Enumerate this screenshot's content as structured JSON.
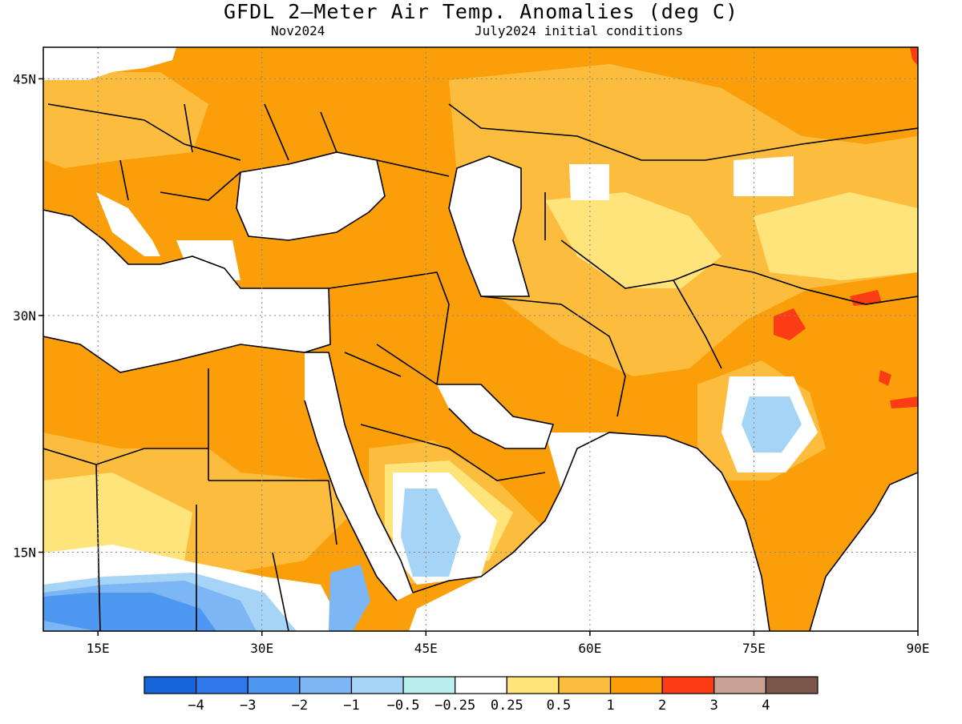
{
  "title": "GFDL 2—Meter Air Temp. Anomalies (deg C)",
  "subtitle_left": "Nov2024",
  "subtitle_right": "July2024 initial conditions",
  "map": {
    "projection": "equirectangular",
    "lon_range": [
      10,
      90
    ],
    "lat_range": [
      10,
      47
    ],
    "x_ticks": [
      {
        "lon": 15,
        "label": "15E"
      },
      {
        "lon": 30,
        "label": "30E"
      },
      {
        "lon": 45,
        "label": "45E"
      },
      {
        "lon": 60,
        "label": "60E"
      },
      {
        "lon": 75,
        "label": "75E"
      },
      {
        "lon": 90,
        "label": "90E"
      }
    ],
    "y_ticks": [
      {
        "lat": 45,
        "label": "45N"
      },
      {
        "lat": 30,
        "label": "30N"
      },
      {
        "lat": 15,
        "label": "15N"
      }
    ],
    "grid": true,
    "grid_style": "dotted"
  },
  "colorbar": {
    "bins": [
      {
        "range": "< -4",
        "color": "#1565d8"
      },
      {
        "range": "-4 to -3",
        "color": "#2e78ec"
      },
      {
        "range": "-3 to -2",
        "color": "#4f98f2"
      },
      {
        "range": "-2 to -1",
        "color": "#7db6f4"
      },
      {
        "range": "-1 to -0.5",
        "color": "#a6d4f6"
      },
      {
        "range": "-0.5 to -0.25",
        "color": "#b9efef"
      },
      {
        "range": "-0.25 to 0.25",
        "color": "#ffffff"
      },
      {
        "range": "0.25 to 0.5",
        "color": "#ffe47c"
      },
      {
        "range": "0.5 to 1",
        "color": "#fcbd3f"
      },
      {
        "range": "1 to 2",
        "color": "#fa9f0a"
      },
      {
        "range": "2 to 3",
        "color": "#fb3c14"
      },
      {
        "range": "3 to 4",
        "color": "#c9a294"
      },
      {
        "range": "> 4",
        "color": "#7a5748"
      }
    ],
    "labels": [
      "−4",
      "−3",
      "−2",
      "−1",
      "−0.5",
      "−0.25",
      "0.25",
      "0.5",
      "1",
      "2",
      "3",
      "4"
    ]
  },
  "regions": [
    {
      "name": "europe-and-russia",
      "category": "1 to 2",
      "color": "#fa9f0a"
    },
    {
      "name": "central-asia",
      "category": "0.5 to 1",
      "color": "#fcbd3f"
    },
    {
      "name": "tibet-warm-core",
      "category": "2 to 3",
      "color": "#fb3c14"
    },
    {
      "name": "arabia-south-cool",
      "category": "-1 to -0.5",
      "color": "#a6d4f6"
    },
    {
      "name": "africa-south-cool",
      "category": "-3 to -2",
      "color": "#4f98f2"
    },
    {
      "name": "india-north-cool",
      "category": "-1 to -0.5",
      "color": "#a6d4f6"
    }
  ]
}
